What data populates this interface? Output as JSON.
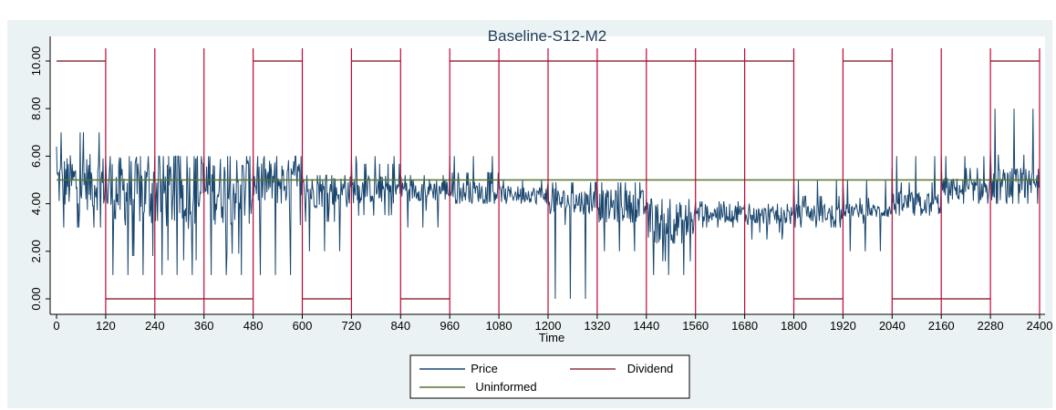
{
  "chart_data": {
    "type": "line",
    "title": "Baseline-S12-M2",
    "xlabel": "Time",
    "ylabel": "",
    "xlim": [
      0,
      2400
    ],
    "ylim": [
      0,
      10
    ],
    "x_ticks": [
      "0",
      "120",
      "240",
      "360",
      "480",
      "600",
      "720",
      "840",
      "960",
      "1080",
      "1200",
      "1320",
      "1440",
      "1560",
      "1680",
      "1800",
      "1920",
      "2040",
      "2160",
      "2280",
      "2400"
    ],
    "y_ticks": [
      "0.00",
      "2.00",
      "4.00",
      "6.00",
      "8.00",
      "10.00"
    ],
    "period_boundaries": [
      120,
      240,
      360,
      480,
      600,
      720,
      840,
      960,
      1080,
      1200,
      1320,
      1440,
      1560,
      1680,
      1800,
      1920,
      2040,
      2160,
      2280,
      2400
    ],
    "grid": false,
    "legend_position": "bottom",
    "colors": {
      "plot_bg": "#ffffff",
      "outer_bg": "#eaf2f3",
      "price": "#1a476f",
      "dividend": "#90353b",
      "uninformed": "#55752f",
      "period_lines": "#c10534"
    },
    "series": [
      {
        "name": "Dividend",
        "segments": [
          {
            "x": [
              0,
              120
            ],
            "y": 10
          },
          {
            "x": [
              120,
              480
            ],
            "y": 0
          },
          {
            "x": [
              480,
              600
            ],
            "y": 10
          },
          {
            "x": [
              600,
              720
            ],
            "y": 0
          },
          {
            "x": [
              720,
              840
            ],
            "y": 10
          },
          {
            "x": [
              840,
              960
            ],
            "y": 0
          },
          {
            "x": [
              960,
              1800
            ],
            "y": 10
          },
          {
            "x": [
              1800,
              1920
            ],
            "y": 0
          },
          {
            "x": [
              1920,
              2040
            ],
            "y": 10
          },
          {
            "x": [
              2040,
              2280
            ],
            "y": 0
          },
          {
            "x": [
              2280,
              2400
            ],
            "y": 10
          }
        ]
      },
      {
        "name": "Uninformed",
        "segments": [
          {
            "x": [
              0,
              2400
            ],
            "y": 5
          }
        ]
      },
      {
        "name": "Price",
        "blocks": [
          {
            "x0": 0,
            "x1": 120,
            "base": 4.9,
            "spread": 1.2,
            "low": 3,
            "high": 7
          },
          {
            "x0": 120,
            "x1": 240,
            "base": 4.5,
            "spread": 1.5,
            "low": 1,
            "high": 6
          },
          {
            "x0": 240,
            "x1": 360,
            "base": 4.5,
            "spread": 1.6,
            "low": 1,
            "high": 6
          },
          {
            "x0": 360,
            "x1": 480,
            "base": 4.6,
            "spread": 1.5,
            "low": 1,
            "high": 6
          },
          {
            "x0": 480,
            "x1": 600,
            "base": 4.9,
            "spread": 1.0,
            "low": 1,
            "high": 6
          },
          {
            "x0": 600,
            "x1": 720,
            "base": 4.5,
            "spread": 0.7,
            "low": 2,
            "high": 5.2
          },
          {
            "x0": 720,
            "x1": 840,
            "base": 4.6,
            "spread": 0.6,
            "low": 3.5,
            "high": 6
          },
          {
            "x0": 840,
            "x1": 960,
            "base": 4.6,
            "spread": 0.5,
            "low": 3,
            "high": 5.2
          },
          {
            "x0": 960,
            "x1": 1080,
            "base": 4.5,
            "spread": 0.45,
            "low": 4,
            "high": 6
          },
          {
            "x0": 1080,
            "x1": 1200,
            "base": 4.4,
            "spread": 0.35,
            "low": 4,
            "high": 5
          },
          {
            "x0": 1200,
            "x1": 1320,
            "base": 4.1,
            "spread": 0.55,
            "low": 0,
            "high": 4.9
          },
          {
            "x0": 1320,
            "x1": 1440,
            "base": 3.9,
            "spread": 0.7,
            "low": 2,
            "high": 4.9
          },
          {
            "x0": 1440,
            "x1": 1560,
            "base": 3.2,
            "spread": 0.9,
            "low": 1,
            "high": 4.2
          },
          {
            "x0": 1560,
            "x1": 1680,
            "base": 3.6,
            "spread": 0.4,
            "low": 3,
            "high": 4.1
          },
          {
            "x0": 1680,
            "x1": 1800,
            "base": 3.5,
            "spread": 0.4,
            "low": 2.5,
            "high": 4
          },
          {
            "x0": 1800,
            "x1": 1920,
            "base": 3.6,
            "spread": 0.4,
            "low": 3,
            "high": 5
          },
          {
            "x0": 1920,
            "x1": 2040,
            "base": 3.7,
            "spread": 0.3,
            "low": 2,
            "high": 5
          },
          {
            "x0": 2040,
            "x1": 2160,
            "base": 4.0,
            "spread": 0.5,
            "low": 3.5,
            "high": 6
          },
          {
            "x0": 2160,
            "x1": 2280,
            "base": 4.6,
            "spread": 0.5,
            "low": 4,
            "high": 6
          },
          {
            "x0": 2280,
            "x1": 2400,
            "base": 4.8,
            "spread": 0.7,
            "low": 4,
            "high": 8
          }
        ]
      }
    ],
    "legend": [
      "Price",
      "Dividend",
      "Uninformed"
    ]
  }
}
